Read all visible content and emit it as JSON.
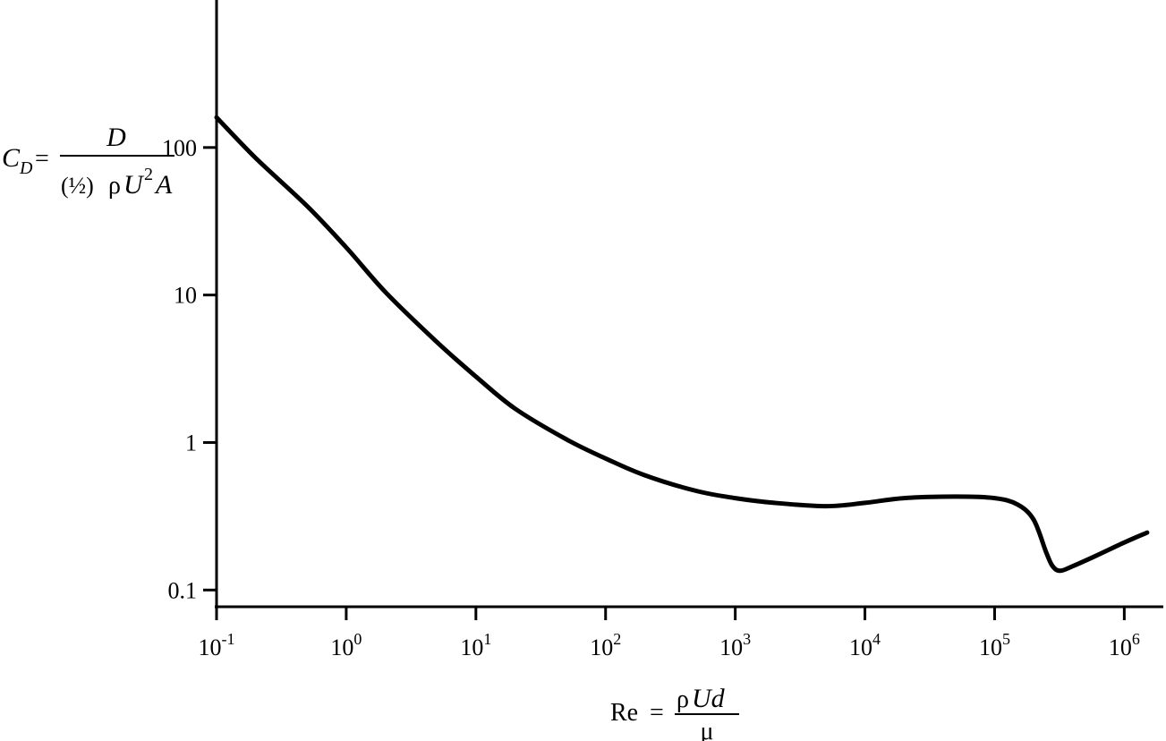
{
  "chart_data": {
    "type": "line",
    "x_scale": "log",
    "y_scale": "log",
    "xlim": [
      0.1,
      2000000
    ],
    "ylim": [
      0.077,
      1000
    ],
    "grid": false,
    "legend": "none",
    "title": "",
    "x_ticks": [
      {
        "value": 0.1,
        "base": "10",
        "exp": "-1"
      },
      {
        "value": 1,
        "base": "10",
        "exp": "0"
      },
      {
        "value": 10,
        "base": "10",
        "exp": "1"
      },
      {
        "value": 100,
        "base": "10",
        "exp": "2"
      },
      {
        "value": 1000,
        "base": "10",
        "exp": "3"
      },
      {
        "value": 10000,
        "base": "10",
        "exp": "4"
      },
      {
        "value": 100000,
        "base": "10",
        "exp": "5"
      },
      {
        "value": 1000000,
        "base": "10",
        "exp": "6"
      }
    ],
    "y_ticks": [
      {
        "value": 0.1,
        "label": "0.1"
      },
      {
        "value": 1,
        "label": "1"
      },
      {
        "value": 10,
        "label": "10"
      },
      {
        "value": 100,
        "label": "100"
      }
    ],
    "ylabel": {
      "lhs": "C",
      "lhs_sub": "D",
      "eq": "=",
      "numerator": "D",
      "den_paren": "(½)",
      "den_rho": "ρ",
      "den_u": "U",
      "den_exp": "2",
      "den_a": "A"
    },
    "xlabel": {
      "lhs": "Re",
      "eq": "=",
      "num_rho": "ρ",
      "num_ud": "Ud",
      "denominator": "μ"
    },
    "series": [
      {
        "x": [
          0.1,
          0.2,
          0.5,
          1,
          2,
          5,
          10,
          20,
          50,
          100,
          200,
          500,
          1000,
          2000,
          5000,
          10000,
          20000,
          50000,
          100000,
          150000,
          200000,
          250000,
          280000,
          320000,
          400000,
          600000,
          1000000,
          1500000
        ],
        "y": [
          160,
          85,
          40,
          21,
          10.5,
          4.8,
          2.8,
          1.7,
          1.05,
          0.78,
          0.6,
          0.47,
          0.42,
          0.39,
          0.37,
          0.39,
          0.42,
          0.43,
          0.42,
          0.38,
          0.3,
          0.18,
          0.145,
          0.135,
          0.145,
          0.17,
          0.21,
          0.245
        ]
      }
    ]
  }
}
